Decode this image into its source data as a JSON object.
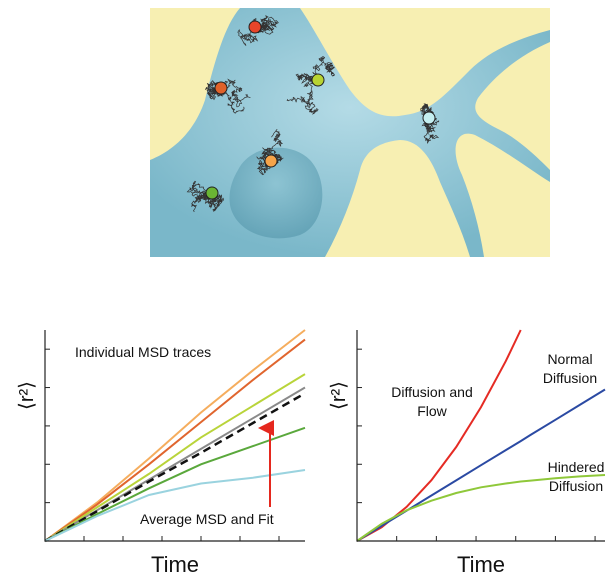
{
  "chart_data": [
    {
      "type": "line",
      "ylabel": "⟨r²⟩",
      "xlabel": "Time",
      "x": [
        0,
        2,
        4,
        6,
        8,
        10
      ],
      "xlim": [
        0,
        10
      ],
      "ylim": [
        0,
        11
      ],
      "xticks": [
        1.5,
        3,
        4.5,
        6,
        7.5,
        9
      ],
      "yticks": [
        2,
        4,
        6,
        8,
        10
      ],
      "series": [
        {
          "color": "#f5ad5e",
          "values": [
            0,
            2,
            4.3,
            6.7,
            8.9,
            11
          ]
        },
        {
          "color": "#e0652e",
          "values": [
            0,
            1.9,
            4,
            6.2,
            8.4,
            10.5
          ]
        },
        {
          "color": "#b9d43a",
          "values": [
            0,
            1.75,
            3.5,
            5.4,
            7.05,
            8.7
          ]
        },
        {
          "color": "#8a8a8a",
          "values": [
            0,
            1.6,
            3.2,
            4.8,
            6.4,
            8
          ]
        },
        {
          "color": "#111111",
          "style": "dashed",
          "values": [
            0,
            1.55,
            3.1,
            4.6,
            6.15,
            7.7
          ]
        },
        {
          "color": "#5aa83c",
          "values": [
            0,
            1.4,
            2.75,
            4,
            4.95,
            5.9
          ]
        },
        {
          "color": "#9ad3df",
          "values": [
            0,
            1.3,
            2.4,
            3,
            3.3,
            3.7
          ]
        }
      ],
      "annotations": [
        {
          "lines": [
            "Individual MSD traces"
          ]
        },
        {
          "lines": [
            "Average MSD and Fit"
          ]
        }
      ]
    },
    {
      "type": "line",
      "ylabel": "⟨r²⟩",
      "xlabel": "Time",
      "x": [
        0,
        1,
        2,
        3,
        4,
        5,
        6,
        6.6,
        7,
        8,
        9,
        10
      ],
      "xlim": [
        0,
        10
      ],
      "ylim": [
        0,
        11
      ],
      "xticks": [
        1.6,
        3.2,
        4.8,
        6.4,
        8,
        9.6
      ],
      "yticks": [
        2,
        4,
        6,
        8,
        10
      ],
      "series": [
        {
          "color": "#e52b24",
          "values": [
            0,
            0.72,
            1.78,
            3.17,
            4.9,
            6.98,
            9.38,
            11,
            null,
            null,
            null,
            null
          ]
        },
        {
          "color": "#2b4aa3",
          "values": [
            0,
            0.79,
            1.58,
            2.37,
            3.16,
            3.95,
            4.74,
            5.21,
            5.53,
            6.32,
            7.11,
            7.9
          ]
        },
        {
          "color": "#8fc83a",
          "values": [
            0,
            0.9,
            1.6,
            2.1,
            2.5,
            2.8,
            3.0,
            3.1,
            3.15,
            3.27,
            3.37,
            3.44
          ]
        }
      ],
      "annotations": [
        {
          "lines": [
            "Diffusion and",
            "Flow"
          ]
        },
        {
          "lines": [
            "Normal",
            "Diffusion"
          ]
        },
        {
          "lines": [
            "Hindered",
            "Diffusion"
          ]
        }
      ]
    }
  ]
}
